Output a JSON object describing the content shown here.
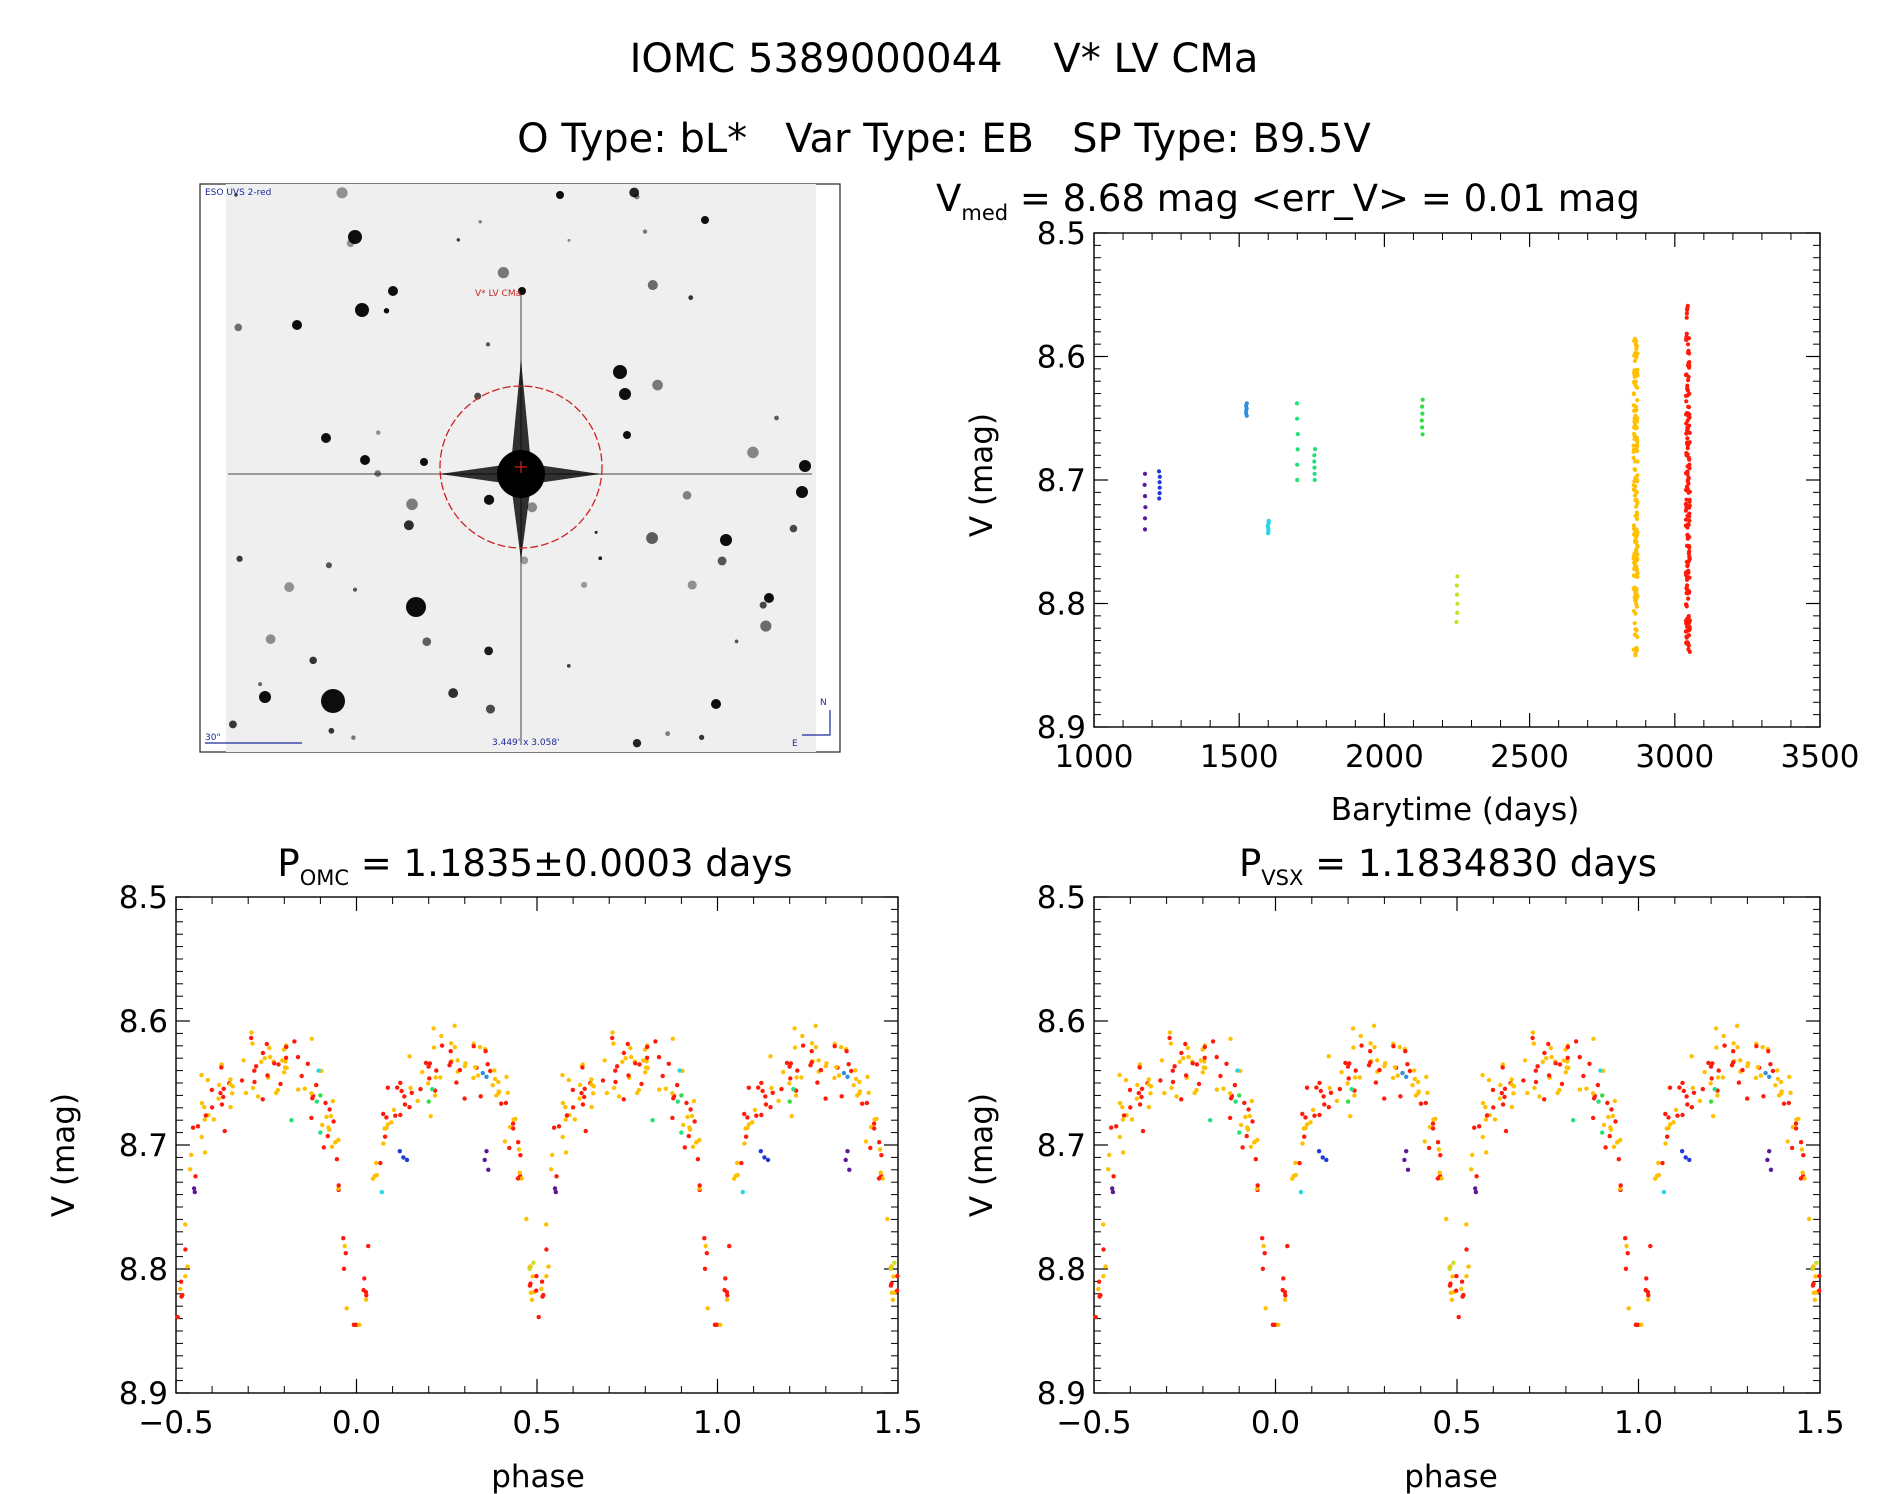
{
  "header": {
    "title_line1": "IOMC 5389000044    V* LV CMa",
    "title_line2": "O Type: bL*   Var Type: EB   SP Type: B9.5V"
  },
  "finder_image": {
    "survey_label": "ESO UVS 2-red",
    "target_label": "V* LV CMa",
    "scale_label": "30\"",
    "size_label": "3.449' x 3.058'",
    "north_label": "N",
    "east_label": "E",
    "circle_color": "#cc2222",
    "label_color": "#1a2a99"
  },
  "lightcurve_panel": {
    "title_prefix": "V",
    "title_sub": "med",
    "title_rest": " = 8.68 mag <err_V> = 0.01 mag",
    "xlabel": "Barytime (days)",
    "ylabel": "V (mag)"
  },
  "phase_panel_left": {
    "title_prefix": "P",
    "title_sub": "OMC",
    "title_rest": " = 1.1835±0.0003 days",
    "xlabel": "phase",
    "ylabel": "V (mag)"
  },
  "phase_panel_right": {
    "title_prefix": "P",
    "title_sub": "VSX",
    "title_rest": " = 1.1834830 days",
    "xlabel": "phase",
    "ylabel": "V (mag)"
  },
  "chart_data": [
    {
      "type": "scatter",
      "title": "V_med = 8.68 mag <err_V> = 0.01 mag",
      "xlabel": "Barytime (days)",
      "ylabel": "V (mag)",
      "xlim": [
        1000,
        3500
      ],
      "ylim": [
        8.9,
        8.5
      ],
      "y_reversed": true,
      "xticks": [
        "1000",
        "1500",
        "2000",
        "2500",
        "3000",
        "3500"
      ],
      "yticks": [
        "8.5",
        "8.6",
        "8.7",
        "8.8",
        "8.9"
      ],
      "series": [
        {
          "color": "#5b1a99",
          "x": [
            1170,
            1174,
            1178,
            1182
          ],
          "y": [
            8.735,
            8.72,
            8.71,
            8.7
          ]
        },
        {
          "color": "#1f3ad6",
          "x": [
            1210,
            1228
          ],
          "y": [
            8.712,
            8.7
          ]
        },
        {
          "color": "#2f8fe0",
          "x": [
            1525
          ],
          "y": [
            8.643
          ]
        },
        {
          "color": "#22d8e6",
          "x": [
            1600
          ],
          "y": [
            8.738
          ]
        },
        {
          "color": "#22e07a",
          "x": [
            1700,
            1760
          ],
          "y": [
            8.665,
            8.685
          ]
        },
        {
          "color": "#33dd44",
          "x": [
            2130
          ],
          "y": [
            8.65
          ]
        },
        {
          "color": "#c8e022",
          "x": [
            2250
          ],
          "y": [
            8.8
          ]
        },
        {
          "color": "#ffc000",
          "x": [
            2865
          ],
          "y": [
            8.69
          ]
        },
        {
          "color": "#ff1a0a",
          "x": [
            3045
          ],
          "y": [
            8.69
          ]
        }
      ],
      "x_range_note": "Points cluster at seasons near 1175, 1225, 1525, 1600, 1700, 1760, 2130, 2250, 2865 and 3045 days",
      "season_spans": [
        {
          "x": 1175,
          "y_min": 8.695,
          "y_max": 8.74,
          "color": "#5b1a99"
        },
        {
          "x": 1225,
          "y_min": 8.693,
          "y_max": 8.715,
          "color": "#1f3ad6"
        },
        {
          "x": 1525,
          "y_min": 8.638,
          "y_max": 8.648,
          "color": "#2f8fe0"
        },
        {
          "x": 1600,
          "y_min": 8.733,
          "y_max": 8.743,
          "color": "#22d8e6"
        },
        {
          "x": 1700,
          "y_min": 8.638,
          "y_max": 8.7,
          "color": "#22e07a"
        },
        {
          "x": 1760,
          "y_min": 8.675,
          "y_max": 8.7,
          "color": "#22e07a"
        },
        {
          "x": 2130,
          "y_min": 8.635,
          "y_max": 8.663,
          "color": "#33dd44"
        },
        {
          "x": 2250,
          "y_min": 8.778,
          "y_max": 8.815,
          "color": "#c8e022"
        },
        {
          "x": 2865,
          "y_min": 8.582,
          "y_max": 8.843,
          "color": "#ffc000"
        },
        {
          "x": 3045,
          "y_min": 8.558,
          "y_max": 8.842,
          "color": "#ff1a0a"
        }
      ]
    },
    {
      "type": "scatter",
      "title": "P_OMC = 1.1835±0.0003 days",
      "xlabel": "phase",
      "ylabel": "V (mag)",
      "xlim": [
        -0.5,
        1.5
      ],
      "ylim": [
        8.9,
        8.5
      ],
      "y_reversed": true,
      "xticks": [
        "−0.5",
        "0.0",
        "0.5",
        "1.0",
        "1.5"
      ],
      "yticks": [
        "8.5",
        "8.6",
        "8.7",
        "8.8",
        "8.9"
      ],
      "period_days": 1.1835,
      "curve_shape": {
        "primary_minimum": {
          "phase": 0.0,
          "V": 8.835
        },
        "secondary_minimum": {
          "phase": 0.5,
          "V": 8.805
        },
        "maxima": [
          {
            "phase": 0.25,
            "V": 8.62
          },
          {
            "phase": 0.75,
            "V": 8.64
          }
        ]
      }
    },
    {
      "type": "scatter",
      "title": "P_VSX = 1.1834830 days",
      "xlabel": "phase",
      "ylabel": "V (mag)",
      "xlim": [
        -0.5,
        1.5
      ],
      "ylim": [
        8.9,
        8.5
      ],
      "y_reversed": true,
      "xticks": [
        "−0.5",
        "0.0",
        "0.5",
        "1.0",
        "1.5"
      ],
      "yticks": [
        "8.5",
        "8.6",
        "8.7",
        "8.8",
        "8.9"
      ],
      "period_days": 1.183483,
      "curve_shape": {
        "primary_minimum": {
          "phase": 0.0,
          "V": 8.835
        },
        "secondary_minimum": {
          "phase": 0.5,
          "V": 8.805
        },
        "maxima": [
          {
            "phase": 0.25,
            "V": 8.62
          },
          {
            "phase": 0.75,
            "V": 8.64
          }
        ]
      }
    }
  ]
}
